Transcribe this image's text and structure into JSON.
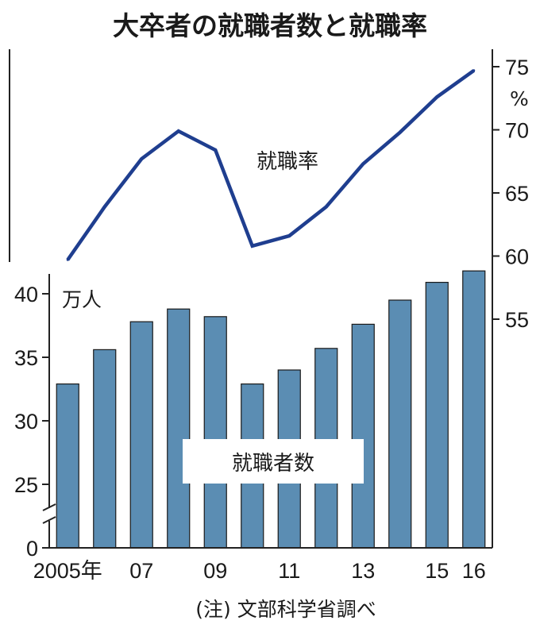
{
  "title": "大卒者の就職者数と就職率",
  "note": "(注) 文部科学省調べ",
  "chart_data": [
    {
      "type": "bar",
      "name": "就職者数",
      "unit": "万人",
      "categories": [
        "2005",
        "2006",
        "2007",
        "2008",
        "2009",
        "2010",
        "2011",
        "2012",
        "2013",
        "2014",
        "2015",
        "2016"
      ],
      "x_tick_labels": [
        "2005年",
        "",
        "07",
        "",
        "09",
        "",
        "11",
        "",
        "13",
        "",
        "15",
        "16"
      ],
      "values": [
        32.9,
        35.6,
        37.8,
        38.8,
        38.2,
        32.9,
        34.0,
        35.7,
        37.6,
        39.5,
        40.9,
        41.8
      ],
      "ylim": [
        0,
        42
      ],
      "y_ticks": [
        "0",
        "25",
        "30",
        "35",
        "40"
      ],
      "axis_break": true,
      "color": "#5b8db3"
    },
    {
      "type": "line",
      "name": "就職率",
      "unit": "%",
      "categories": [
        "2005",
        "2006",
        "2007",
        "2008",
        "2009",
        "2010",
        "2011",
        "2012",
        "2013",
        "2014",
        "2015",
        "2016"
      ],
      "values": [
        59.7,
        63.9,
        67.7,
        69.9,
        68.4,
        60.8,
        61.6,
        63.9,
        67.3,
        69.8,
        72.6,
        74.7
      ],
      "ylim": [
        55,
        75
      ],
      "y_ticks": [
        "55",
        "60",
        "65",
        "70",
        "75"
      ],
      "color": "#1f3e8f"
    }
  ]
}
